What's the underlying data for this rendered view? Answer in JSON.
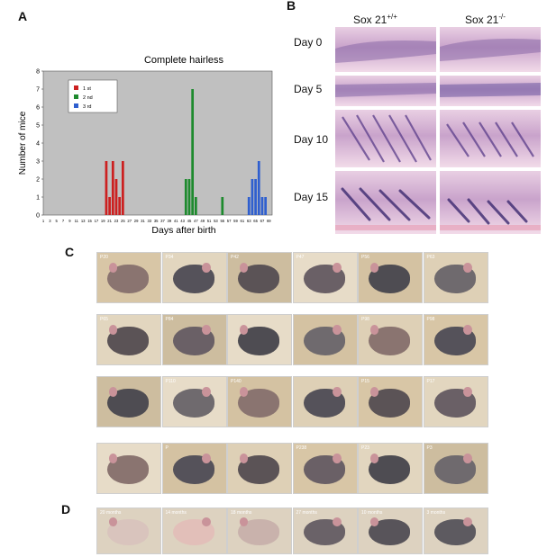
{
  "panels": {
    "a": "A",
    "b": "B",
    "c": "C",
    "d": "D"
  },
  "chart_data": {
    "type": "bar",
    "title": "Complete hairless",
    "xlabel": "Days after birth",
    "ylabel": "Number of mice",
    "ylim": [
      0,
      8
    ],
    "xlim": [
      1,
      70
    ],
    "yticks": [
      0,
      1,
      2,
      3,
      4,
      5,
      6,
      7,
      8
    ],
    "xticks": [
      1,
      3,
      5,
      7,
      9,
      11,
      13,
      15,
      17,
      19,
      21,
      23,
      25,
      27,
      29,
      31,
      33,
      35,
      37,
      39,
      41,
      43,
      45,
      47,
      49,
      51,
      53,
      55,
      57,
      59,
      61,
      63,
      65,
      67,
      69
    ],
    "xtick_labels": [
      "1",
      "3",
      "5",
      "7",
      "9",
      "11",
      "13",
      "15",
      "17",
      "19",
      "21",
      "23",
      "25",
      "27",
      "29",
      "31",
      "33",
      "35",
      "37",
      "39",
      "41",
      "43",
      "45",
      "47",
      "49",
      "51",
      "53",
      "55",
      "57",
      "59",
      "61",
      "63",
      "65",
      "67",
      "69"
    ],
    "grid": false,
    "legend": "top-left",
    "background": "#c0c0c0",
    "series": [
      {
        "name": "1 st",
        "color": "#cc2020",
        "points": [
          [
            20,
            3
          ],
          [
            21,
            1
          ],
          [
            22,
            3
          ],
          [
            23,
            2
          ],
          [
            24,
            1
          ],
          [
            25,
            3
          ]
        ]
      },
      {
        "name": "2 nd",
        "color": "#1e8a2e",
        "points": [
          [
            44,
            2
          ],
          [
            45,
            2
          ],
          [
            46,
            7
          ],
          [
            47,
            1
          ],
          [
            55,
            1
          ]
        ]
      },
      {
        "name": "3 rd",
        "color": "#2f5fcf",
        "points": [
          [
            63,
            1
          ],
          [
            64,
            2
          ],
          [
            65,
            2
          ],
          [
            66,
            3
          ],
          [
            67,
            1
          ],
          [
            68,
            1
          ]
        ]
      }
    ]
  },
  "histology": {
    "columns": [
      "Sox 21",
      "Sox 21"
    ],
    "column_sups": [
      "+/+",
      "-/-"
    ],
    "rows": [
      "Day 0",
      "Day 5",
      "Day 10",
      "Day 15"
    ]
  },
  "panel_c": {
    "rows": [
      [
        "P20",
        "P34",
        "P42",
        "P47",
        "P56",
        "P63"
      ],
      [
        "P65",
        "P84",
        "",
        "",
        "P98",
        "P98"
      ],
      [
        "",
        "P110",
        "P140",
        "",
        "P15",
        "P17"
      ],
      [
        "",
        "P",
        "",
        "P238",
        "P23",
        "P3"
      ]
    ]
  },
  "panel_d": {
    "labels": [
      "20 months",
      "14 months",
      "18 months",
      "27 months",
      "10 months",
      "3 months"
    ]
  }
}
